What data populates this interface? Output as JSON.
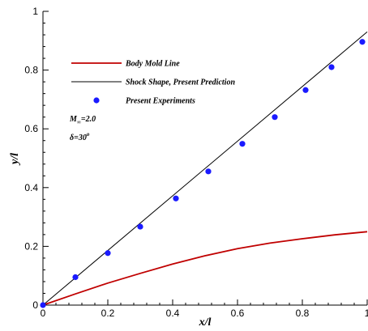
{
  "chart_data": {
    "type": "line",
    "xlabel": "x/l",
    "ylabel": "y/l",
    "xlim": [
      0,
      1
    ],
    "ylim": [
      0,
      1
    ],
    "xticks": [
      "0",
      "0.2",
      "0.4",
      "0.6",
      "0.8",
      "1"
    ],
    "yticks": [
      "0",
      "0.2",
      "0.4",
      "0.6",
      "0.8",
      "1"
    ],
    "grid": false,
    "legend_position": "top-left",
    "series": [
      {
        "name": "Body Mold Line",
        "kind": "line",
        "color": "#c00000",
        "x": [
          0,
          0.1,
          0.2,
          0.3,
          0.4,
          0.5,
          0.6,
          0.7,
          0.8,
          0.9,
          1.0
        ],
        "y": [
          0,
          0.038,
          0.075,
          0.108,
          0.14,
          0.168,
          0.192,
          0.211,
          0.226,
          0.239,
          0.25
        ]
      },
      {
        "name": "Shock Shape, Present Prediction",
        "kind": "line",
        "color": "#000000",
        "x": [
          0,
          1.0
        ],
        "y": [
          0,
          0.93
        ]
      },
      {
        "name": "Present Experiments",
        "kind": "scatter",
        "color": "#1a1aff",
        "x": [
          0,
          0.1,
          0.2,
          0.3,
          0.41,
          0.51,
          0.615,
          0.715,
          0.81,
          0.89,
          0.985
        ],
        "y": [
          0,
          0.095,
          0.177,
          0.267,
          0.363,
          0.455,
          0.549,
          0.64,
          0.732,
          0.81,
          0.896
        ]
      }
    ],
    "annotations": {
      "mach_main": "M",
      "mach_sub": "∞",
      "mach_val": "=2.0",
      "delta_main": "δ=30",
      "delta_sup": "o"
    }
  }
}
